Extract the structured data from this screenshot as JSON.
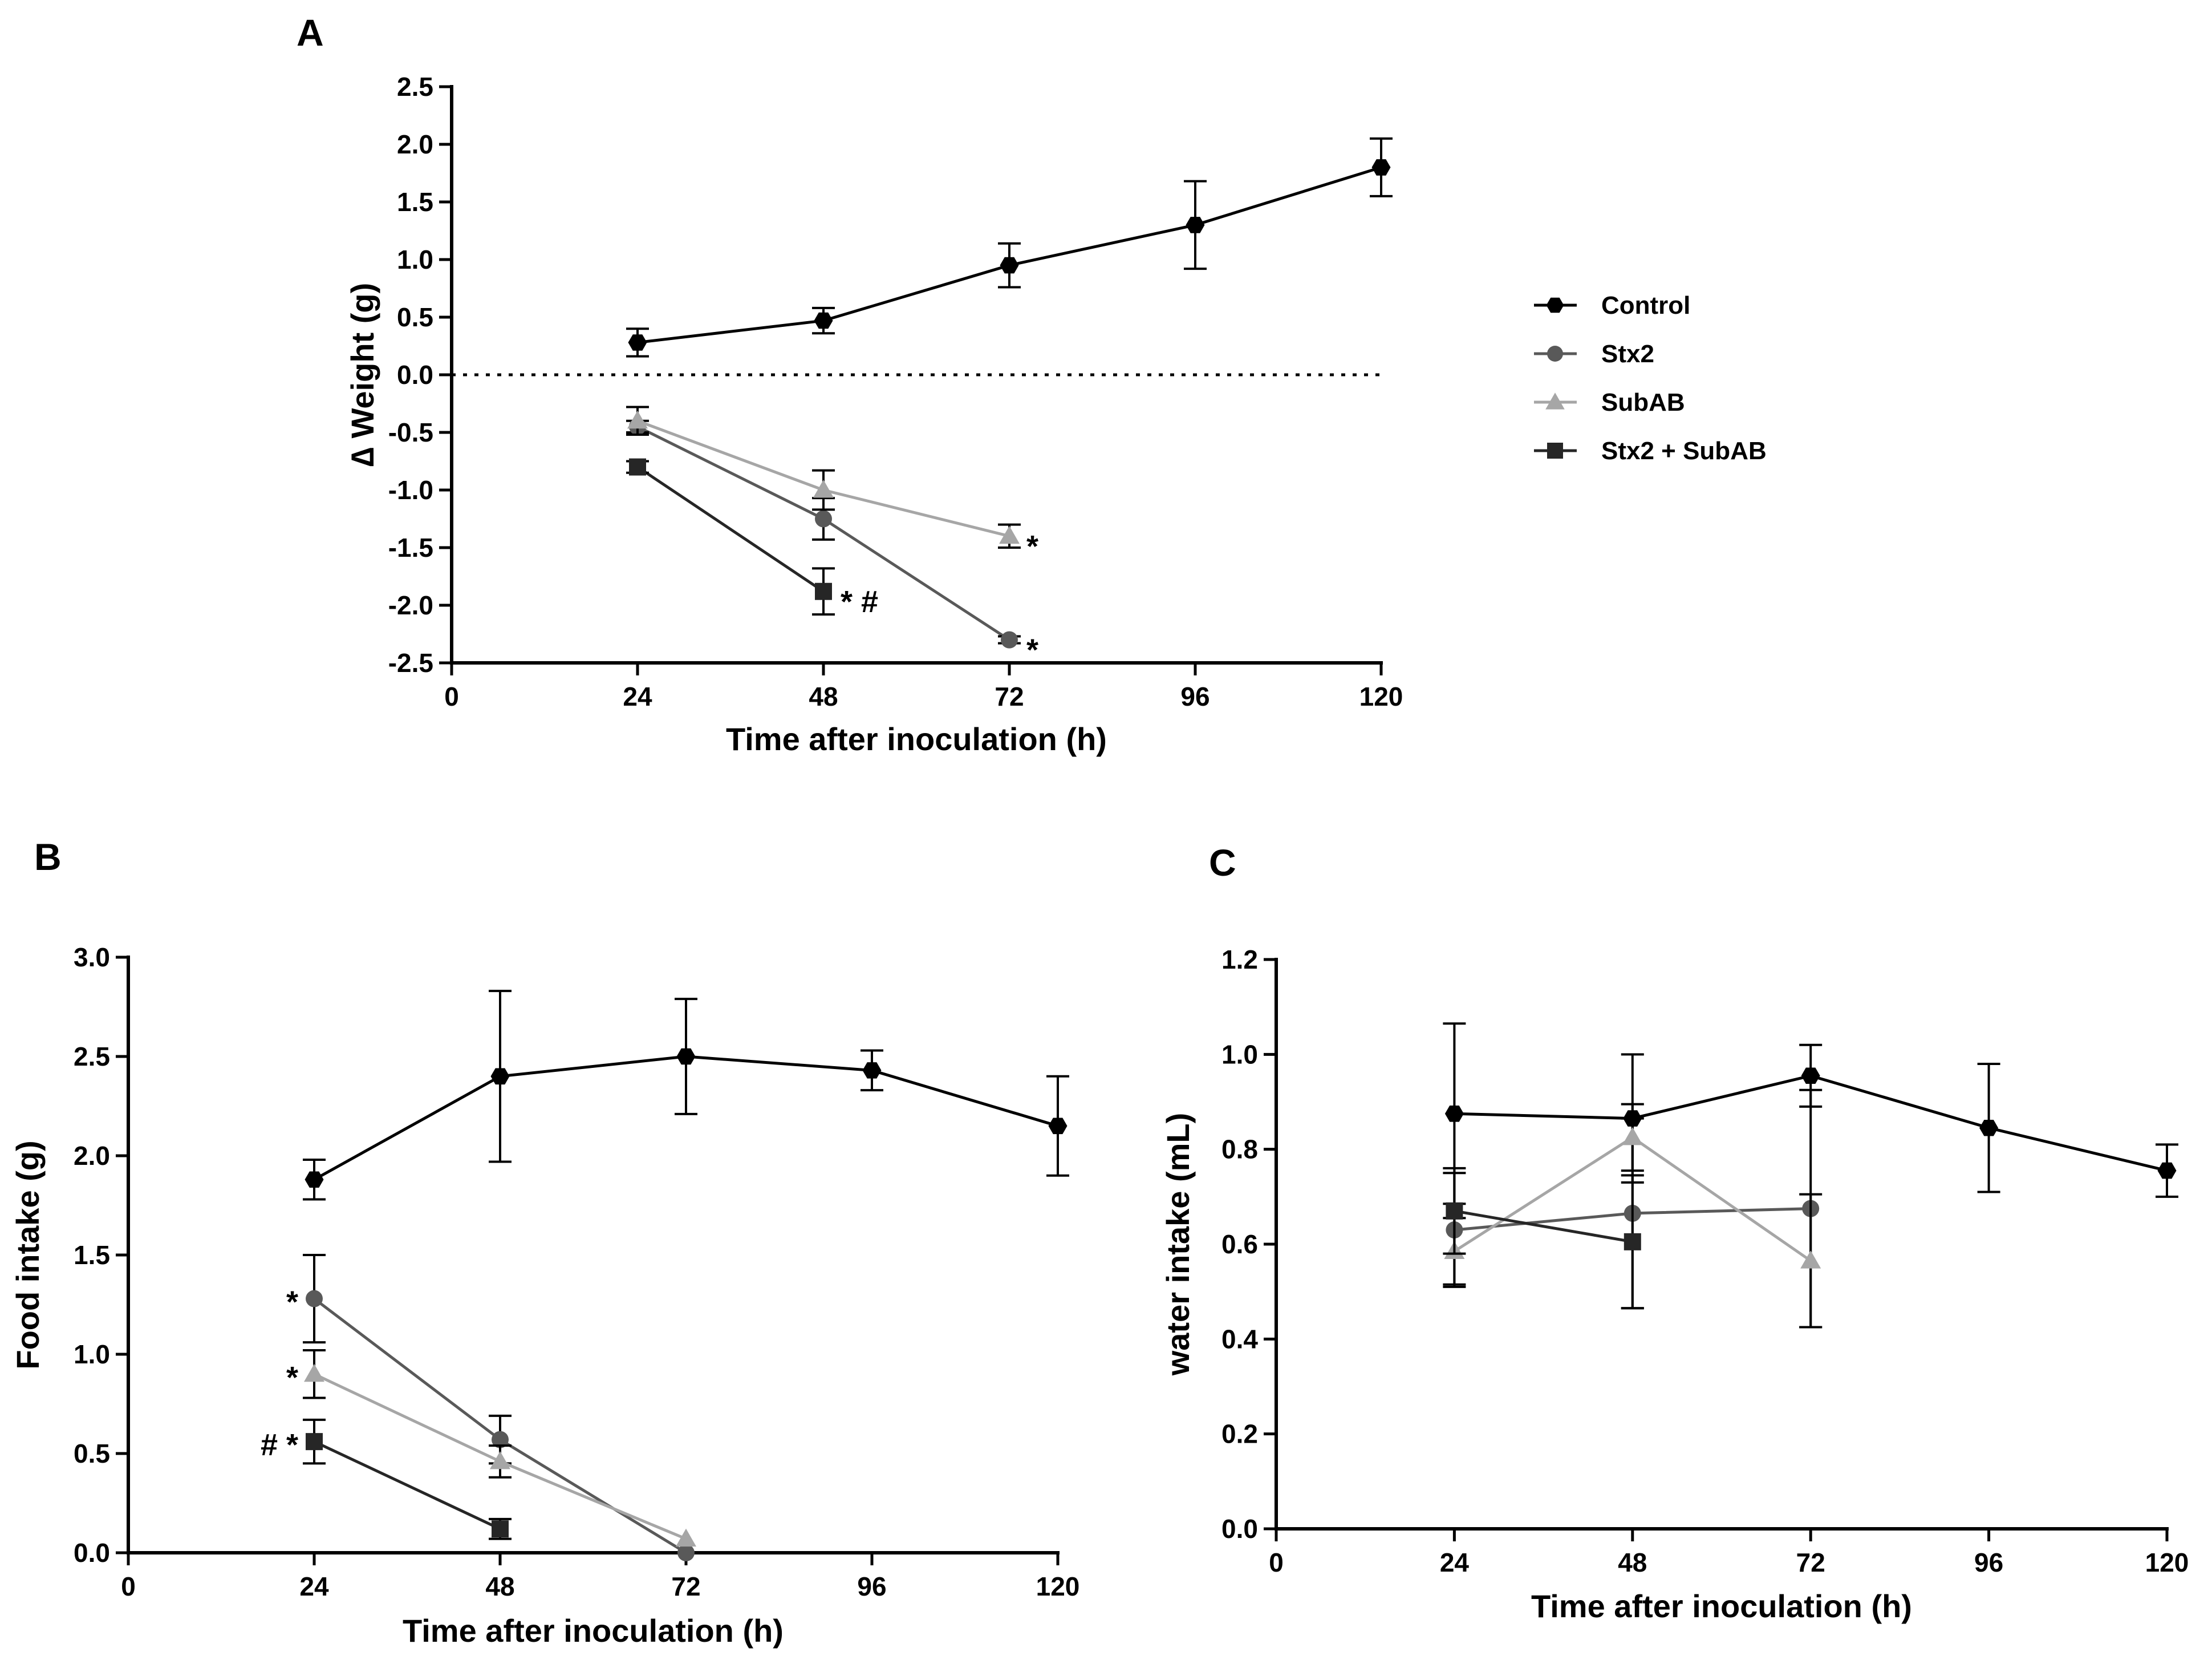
{
  "series_styles": [
    {
      "name": "Control",
      "color": "#000000",
      "marker": "hexagon"
    },
    {
      "name": "Stx2",
      "color": "#595959",
      "marker": "circle"
    },
    {
      "name": "SubAB",
      "color": "#a6a6a6",
      "marker": "triangle"
    },
    {
      "name": "Stx2 + SubAB",
      "color": "#262626",
      "marker": "square"
    }
  ],
  "legend": {
    "items": [
      "Control",
      "Stx2",
      "SubAB",
      "Stx2 + SubAB"
    ],
    "placement": "right of panel A"
  },
  "chart_data": [
    {
      "panel": "A",
      "type": "line",
      "xlabel": "Time after inoculation (h)",
      "ylabel": "∆ Weight (g)",
      "xlim": [
        0,
        120
      ],
      "ylim": [
        -2.5,
        2.5
      ],
      "xticks": [
        "0",
        "24",
        "48",
        "72",
        "96",
        "120"
      ],
      "yticks": [
        "-2.5",
        "-2.0",
        "-1.5",
        "-1.0",
        "-0.5",
        "0.0",
        "0.5",
        "1.0",
        "1.5",
        "2.0",
        "2.5"
      ],
      "xtick_values": [
        0,
        24,
        48,
        72,
        96,
        120
      ],
      "ytick_values": [
        -2.5,
        -2.0,
        -1.5,
        -1.0,
        -0.5,
        0.0,
        0.5,
        1.0,
        1.5,
        2.0,
        2.5
      ],
      "reference_line": 0,
      "series": [
        {
          "name": "Control",
          "x": [
            24,
            48,
            72,
            96,
            120
          ],
          "y": [
            0.28,
            0.47,
            0.95,
            1.3,
            1.8
          ],
          "err": [
            0.12,
            0.11,
            0.19,
            0.38,
            0.25
          ]
        },
        {
          "name": "Stx2",
          "x": [
            24,
            48,
            72
          ],
          "y": [
            -0.45,
            -1.25,
            -2.3
          ],
          "err": [
            0.05,
            0.18,
            0.03
          ]
        },
        {
          "name": "SubAB",
          "x": [
            24,
            48,
            72
          ],
          "y": [
            -0.4,
            -1.0,
            -1.4
          ],
          "err": [
            0.12,
            0.17,
            0.1
          ]
        },
        {
          "name": "Stx2 + SubAB",
          "x": [
            24,
            48
          ],
          "y": [
            -0.8,
            -1.88
          ],
          "err": [
            0.05,
            0.2
          ]
        }
      ],
      "annotations": [
        {
          "text": "*",
          "x": 72,
          "y": -1.4
        },
        {
          "text": "*",
          "x": 72,
          "y": -2.3
        },
        {
          "text": "* #",
          "x": 48,
          "y": -1.88
        }
      ]
    },
    {
      "panel": "B",
      "type": "line",
      "xlabel": "Time after inoculation (h)",
      "ylabel": "Food intake (g)",
      "xlim": [
        0,
        120
      ],
      "ylim": [
        0,
        3.0
      ],
      "xticks": [
        "0",
        "24",
        "48",
        "72",
        "96",
        "120"
      ],
      "yticks": [
        "0.0",
        "0.5",
        "1.0",
        "1.5",
        "2.0",
        "2.5",
        "3.0"
      ],
      "xtick_values": [
        0,
        24,
        48,
        72,
        96,
        120
      ],
      "ytick_values": [
        0,
        0.5,
        1.0,
        1.5,
        2.0,
        2.5,
        3.0
      ],
      "series": [
        {
          "name": "Control",
          "x": [
            24,
            48,
            72,
            96,
            120
          ],
          "y": [
            1.88,
            2.4,
            2.5,
            2.43,
            2.15
          ],
          "err": [
            0.1,
            0.43,
            0.29,
            0.1,
            0.25
          ]
        },
        {
          "name": "Stx2",
          "x": [
            24,
            48,
            72
          ],
          "y": [
            1.28,
            0.57,
            0.0
          ],
          "err": [
            0.22,
            0.12,
            0.0
          ]
        },
        {
          "name": "SubAB",
          "x": [
            24,
            48,
            72
          ],
          "y": [
            0.9,
            0.46,
            0.07
          ],
          "err": [
            0.12,
            0.08,
            0.0
          ]
        },
        {
          "name": "Stx2 + SubAB",
          "x": [
            24,
            48
          ],
          "y": [
            0.56,
            0.12
          ],
          "err": [
            0.11,
            0.05
          ]
        }
      ],
      "annotations": [
        {
          "text": "*",
          "x": 24,
          "y": 1.28
        },
        {
          "text": "*",
          "x": 24,
          "y": 0.9
        },
        {
          "text": "# *",
          "x": 24,
          "y": 0.56
        }
      ]
    },
    {
      "panel": "C",
      "type": "line",
      "xlabel": "Time after inoculation (h)",
      "ylabel": "water intake (mL)",
      "xlim": [
        0,
        120
      ],
      "ylim": [
        0,
        1.2
      ],
      "xticks": [
        "0",
        "24",
        "48",
        "72",
        "96",
        "120"
      ],
      "yticks": [
        "0.0",
        "0.2",
        "0.4",
        "0.6",
        "0.8",
        "1.0",
        "1.2"
      ],
      "xtick_values": [
        0,
        24,
        48,
        72,
        96,
        120
      ],
      "ytick_values": [
        0,
        0.2,
        0.4,
        0.6,
        0.8,
        1.0,
        1.2
      ],
      "series": [
        {
          "name": "Control",
          "x": [
            24,
            48,
            72,
            96,
            120
          ],
          "y": [
            0.875,
            0.865,
            0.955,
            0.845,
            0.755
          ],
          "err": [
            0.19,
            0.135,
            0.065,
            0.135,
            0.055
          ]
        },
        {
          "name": "Stx2",
          "x": [
            24,
            48,
            72
          ],
          "y": [
            0.63,
            0.665,
            0.675
          ],
          "err": [
            0.12,
            0.2,
            0.25
          ]
        },
        {
          "name": "SubAB",
          "x": [
            24,
            48,
            72
          ],
          "y": [
            0.585,
            0.825,
            0.565
          ],
          "err": [
            0.07,
            0.07,
            0.14
          ]
        },
        {
          "name": "Stx2 + SubAB",
          "x": [
            24,
            48
          ],
          "y": [
            0.67,
            0.605
          ],
          "err": [
            0.09,
            0.14
          ]
        }
      ],
      "annotations": []
    }
  ]
}
